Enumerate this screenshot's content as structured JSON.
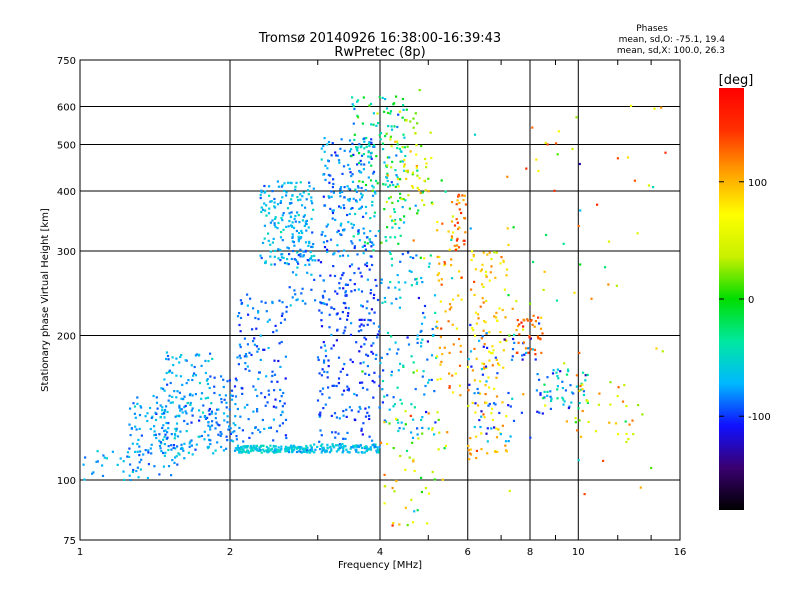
{
  "chart_data": {
    "type": "scatter",
    "title": "Tromsø 20140926 16:38:00-16:39:43",
    "subtitle": "RwPretec (8p)",
    "stats": {
      "heading": "Phases",
      "line1": "mean, sd,O: -75.1, 19.4",
      "line2": "mean, sd,X: 100.0, 26.3"
    },
    "xlabel": "Frequency [MHz]",
    "ylabel": "Stationary phase Virtual Height [km]",
    "x_scale": "log",
    "y_scale": "log",
    "xlim": [
      1,
      16
    ],
    "ylim": [
      75,
      750
    ],
    "x_ticks": [
      1,
      2,
      4,
      6,
      8,
      10,
      16
    ],
    "x_tick_labels": [
      "1",
      "2",
      "4",
      "6",
      "8",
      "10",
      "16"
    ],
    "y_ticks": [
      75,
      100,
      200,
      300,
      400,
      500,
      600,
      750
    ],
    "y_tick_labels": [
      "75",
      "100",
      "200",
      "300",
      "400",
      "500",
      "600",
      "750"
    ],
    "grid": true,
    "colorbar": {
      "label": "[deg]",
      "range": [
        -180,
        180
      ],
      "ticks": [
        100,
        0,
        -100
      ],
      "tick_labels": [
        "100",
        "0",
        "-100"
      ],
      "colors": [
        "#000000",
        "#3a0070",
        "#1010ff",
        "#00b8ff",
        "#00e8a0",
        "#00dd00",
        "#c8f000",
        "#ffff00",
        "#ffa000",
        "#ff3000",
        "#ff0000"
      ]
    },
    "clusters": [
      {
        "f": [
          1.0,
          1.35
        ],
        "h": [
          100,
          115
        ],
        "p": [
          -75,
          15
        ],
        "n": 30
      },
      {
        "f": [
          1.25,
          1.62
        ],
        "h": [
          100,
          150
        ],
        "p": [
          -80,
          18
        ],
        "n": 110
      },
      {
        "f": [
          1.45,
          1.85
        ],
        "h": [
          112,
          185
        ],
        "p": [
          -75,
          20
        ],
        "n": 150
      },
      {
        "f": [
          1.8,
          2.05
        ],
        "h": [
          112,
          165
        ],
        "p": [
          -82,
          15
        ],
        "n": 70
      },
      {
        "f": [
          2.05,
          2.9
        ],
        "h": [
          114,
          118
        ],
        "p": [
          -60,
          15
        ],
        "n": 160
      },
      {
        "f": [
          2.9,
          4.0
        ],
        "h": [
          114,
          119
        ],
        "p": [
          -65,
          15
        ],
        "n": 110
      },
      {
        "f": [
          2.05,
          2.6
        ],
        "h": [
          120,
          250
        ],
        "p": [
          -90,
          15
        ],
        "n": 140
      },
      {
        "f": [
          2.3,
          2.95
        ],
        "h": [
          280,
          420
        ],
        "p": [
          -70,
          18
        ],
        "n": 170
      },
      {
        "f": [
          2.6,
          3.0
        ],
        "h": [
          230,
          350
        ],
        "p": [
          -80,
          15
        ],
        "n": 50
      },
      {
        "f": [
          3.0,
          4.0
        ],
        "h": [
          120,
          290
        ],
        "p": [
          -95,
          15
        ],
        "n": 230
      },
      {
        "f": [
          3.05,
          3.9
        ],
        "h": [
          290,
          520
        ],
        "p": [
          -80,
          18
        ],
        "n": 180
      },
      {
        "f": [
          3.5,
          4.5
        ],
        "h": [
          310,
          630
        ],
        "p": [
          -40,
          35
        ],
        "n": 150
      },
      {
        "f": [
          4.1,
          5.1
        ],
        "h": [
          330,
          600
        ],
        "p": [
          40,
          50
        ],
        "n": 80
      },
      {
        "f": [
          4.0,
          5.2
        ],
        "h": [
          120,
          300
        ],
        "p": [
          -70,
          30
        ],
        "n": 120
      },
      {
        "f": [
          4.0,
          5.5
        ],
        "h": [
          80,
          140
        ],
        "p": [
          60,
          60
        ],
        "n": 50
      },
      {
        "f": [
          5.2,
          5.9
        ],
        "h": [
          150,
          400
        ],
        "p": [
          100,
          30
        ],
        "n": 70
      },
      {
        "f": [
          5.5,
          6.0
        ],
        "h": [
          300,
          400
        ],
        "p": [
          130,
          25
        ],
        "n": 25
      },
      {
        "f": [
          6.0,
          7.2
        ],
        "h": [
          110,
          300
        ],
        "p": [
          90,
          40
        ],
        "n": 130
      },
      {
        "f": [
          6.0,
          8.5
        ],
        "h": [
          120,
          220
        ],
        "p": [
          -90,
          25
        ],
        "n": 70
      },
      {
        "f": [
          7.5,
          8.5
        ],
        "h": [
          180,
          220
        ],
        "p": [
          130,
          20
        ],
        "n": 35
      },
      {
        "f": [
          8.5,
          10.5
        ],
        "h": [
          140,
          170
        ],
        "p": [
          -60,
          40
        ],
        "n": 50
      },
      {
        "f": [
          9.5,
          13.5
        ],
        "h": [
          120,
          160
        ],
        "p": [
          60,
          60
        ],
        "n": 30
      },
      {
        "f": [
          7.0,
          15.0
        ],
        "h": [
          90,
          620
        ],
        "p": [
          100,
          50
        ],
        "n": 50
      },
      {
        "f": [
          3.0,
          15.0
        ],
        "h": [
          80,
          700
        ],
        "p": [
          0,
          90
        ],
        "n": 50
      }
    ]
  }
}
